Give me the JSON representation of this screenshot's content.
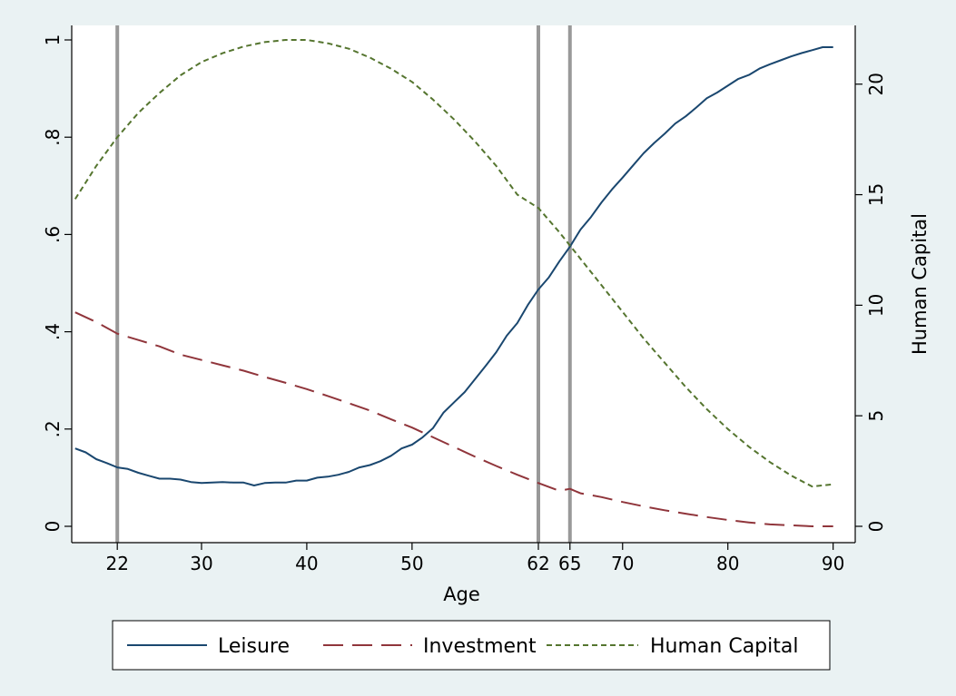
{
  "chart_data": {
    "type": "line",
    "xlabel": "Age",
    "ylabel_left": "",
    "ylabel_right": "Human Capital",
    "xlim": [
      16,
      91
    ],
    "ylim_left": [
      0,
      1
    ],
    "ylim_right": [
      0,
      22
    ],
    "x_ticks": [
      22,
      30,
      40,
      50,
      62,
      65,
      70,
      80,
      90
    ],
    "x_tick_labels": [
      "22",
      "30",
      "40",
      "50",
      "62",
      "65",
      "70",
      "80",
      "90"
    ],
    "y_left_ticks": [
      0,
      0.2,
      0.4,
      0.6,
      0.8,
      1
    ],
    "y_left_tick_labels": [
      "0",
      ".2",
      ".4",
      ".6",
      ".8",
      "1"
    ],
    "y_right_ticks": [
      0,
      5,
      10,
      15,
      20
    ],
    "y_right_tick_labels": [
      "0",
      "5",
      "10",
      "15",
      "20"
    ],
    "vertical_lines": [
      22,
      62,
      65
    ],
    "grid": false,
    "legend_position": "bottom",
    "colors": {
      "background": "#eaf2f3",
      "plot_bg": "#ffffff",
      "vline": "#999999"
    },
    "series": [
      {
        "name": "Leisure",
        "axis": "left",
        "color": "#1a476f",
        "dash": "solid",
        "x": [
          18,
          19,
          20,
          21,
          22,
          23,
          24,
          25,
          26,
          27,
          28,
          29,
          30,
          31,
          32,
          33,
          34,
          35,
          36,
          37,
          38,
          39,
          40,
          41,
          42,
          43,
          44,
          45,
          46,
          47,
          48,
          49,
          50,
          51,
          52,
          53,
          54,
          55,
          56,
          57,
          58,
          59,
          60,
          61,
          62,
          63,
          64,
          65,
          66,
          67,
          68,
          69,
          70,
          71,
          72,
          73,
          74,
          75,
          76,
          77,
          78,
          79,
          80,
          81,
          82,
          83,
          84,
          85,
          86,
          87,
          88,
          89,
          90
        ],
        "values": [
          0.16,
          0.152,
          0.138,
          0.13,
          0.121,
          0.118,
          0.11,
          0.104,
          0.098,
          0.098,
          0.096,
          0.091,
          0.089,
          0.09,
          0.091,
          0.09,
          0.09,
          0.084,
          0.089,
          0.09,
          0.09,
          0.094,
          0.094,
          0.1,
          0.102,
          0.106,
          0.112,
          0.121,
          0.126,
          0.134,
          0.145,
          0.16,
          0.168,
          0.183,
          0.202,
          0.234,
          0.255,
          0.276,
          0.303,
          0.33,
          0.358,
          0.392,
          0.418,
          0.455,
          0.487,
          0.512,
          0.545,
          0.575,
          0.61,
          0.636,
          0.666,
          0.693,
          0.717,
          0.742,
          0.767,
          0.788,
          0.807,
          0.828,
          0.843,
          0.861,
          0.88,
          0.892,
          0.906,
          0.92,
          0.928,
          0.941,
          0.95,
          0.958,
          0.966,
          0.973,
          0.979,
          0.985,
          0.985
        ]
      },
      {
        "name": "Investment",
        "axis": "left",
        "color": "#90353b",
        "dash": "long",
        "x": [
          18,
          20,
          22,
          24,
          26,
          28,
          30,
          32,
          34,
          36,
          38,
          40,
          42,
          44,
          46,
          48,
          50,
          52,
          54,
          56,
          58,
          60,
          62,
          64,
          65,
          66,
          68,
          70,
          72,
          74,
          76,
          78,
          80,
          82,
          84,
          86,
          88,
          90
        ],
        "values": [
          0.44,
          0.42,
          0.396,
          0.383,
          0.37,
          0.353,
          0.342,
          0.331,
          0.32,
          0.307,
          0.295,
          0.282,
          0.268,
          0.253,
          0.238,
          0.22,
          0.203,
          0.183,
          0.163,
          0.143,
          0.124,
          0.106,
          0.089,
          0.073,
          0.077,
          0.068,
          0.06,
          0.05,
          0.041,
          0.033,
          0.026,
          0.019,
          0.013,
          0.008,
          0.004,
          0.002,
          0.0,
          0.0
        ]
      },
      {
        "name": "Human Capital",
        "axis": "right",
        "color": "#55752f",
        "dash": "short",
        "x": [
          18,
          20,
          22,
          24,
          26,
          28,
          30,
          32,
          34,
          36,
          38,
          40,
          42,
          44,
          46,
          48,
          50,
          52,
          54,
          56,
          58,
          60,
          62,
          64,
          66,
          68,
          70,
          72,
          74,
          76,
          78,
          80,
          82,
          84,
          86,
          88,
          90
        ],
        "values": [
          14.8,
          16.3,
          17.6,
          18.7,
          19.6,
          20.4,
          21.0,
          21.4,
          21.7,
          21.9,
          22.0,
          22.0,
          21.85,
          21.6,
          21.2,
          20.7,
          20.1,
          19.3,
          18.4,
          17.4,
          16.3,
          15.0,
          14.4,
          13.3,
          12.1,
          10.9,
          9.7,
          8.5,
          7.4,
          6.3,
          5.3,
          4.4,
          3.6,
          2.9,
          2.3,
          1.8,
          1.9
        ]
      }
    ]
  }
}
